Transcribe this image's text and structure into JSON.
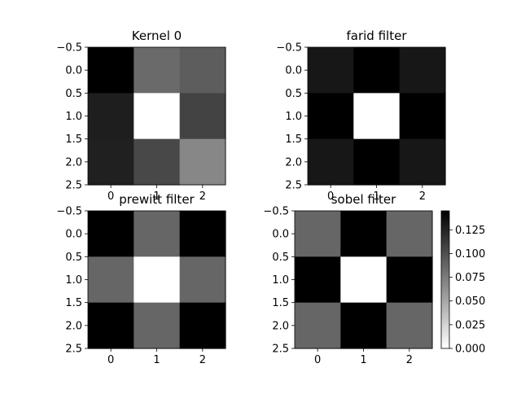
{
  "chart_data": [
    {
      "type": "heatmap",
      "title": "Kernel 0",
      "matrix": [
        [
          0.145,
          0.085,
          0.092
        ],
        [
          0.128,
          0.0,
          0.107
        ],
        [
          0.127,
          0.104,
          0.068
        ]
      ],
      "x_ticks": [
        "0",
        "1",
        "2"
      ],
      "y_ticks": [
        "−0.5",
        "0.0",
        "0.5",
        "1.0",
        "1.5",
        "2.0",
        "2.5"
      ],
      "xlim": [
        -0.5,
        2.5
      ],
      "ylim": [
        2.5,
        -0.5
      ],
      "colormap": "gray_r"
    },
    {
      "type": "heatmap",
      "title": "farid filter",
      "matrix": [
        [
          0.132,
          0.145,
          0.132
        ],
        [
          0.145,
          0.0,
          0.145
        ],
        [
          0.132,
          0.145,
          0.132
        ]
      ],
      "x_ticks": [
        "0",
        "1",
        "2"
      ],
      "y_ticks": [
        "−0.5",
        "0.0",
        "0.5",
        "1.0",
        "1.5",
        "2.0",
        "2.5"
      ],
      "xlim": [
        -0.5,
        2.5
      ],
      "ylim": [
        2.5,
        -0.5
      ],
      "colormap": "gray_r"
    },
    {
      "type": "heatmap",
      "title": "prewitt filter",
      "matrix": [
        [
          0.145,
          0.087,
          0.145
        ],
        [
          0.087,
          0.0,
          0.087
        ],
        [
          0.145,
          0.087,
          0.145
        ]
      ],
      "x_ticks": [
        "0",
        "1",
        "2"
      ],
      "y_ticks": [
        "−0.5",
        "0.0",
        "0.5",
        "1.0",
        "1.5",
        "2.0",
        "2.5"
      ],
      "xlim": [
        -0.5,
        2.5
      ],
      "ylim": [
        2.5,
        -0.5
      ],
      "colormap": "gray_r"
    },
    {
      "type": "heatmap",
      "title": "sobel filter",
      "matrix": [
        [
          0.087,
          0.145,
          0.087
        ],
        [
          0.145,
          0.0,
          0.145
        ],
        [
          0.087,
          0.145,
          0.087
        ]
      ],
      "x_ticks": [
        "0",
        "1",
        "2"
      ],
      "y_ticks": [
        "−0.5",
        "0.0",
        "0.5",
        "1.0",
        "1.5",
        "2.0",
        "2.5"
      ],
      "xlim": [
        -0.5,
        2.5
      ],
      "ylim": [
        2.5,
        -0.5
      ],
      "colormap": "gray_r",
      "colorbar": {
        "ticks": [
          "0.000",
          "0.025",
          "0.050",
          "0.075",
          "0.100",
          "0.125"
        ],
        "range": [
          0,
          0.145
        ]
      }
    }
  ]
}
